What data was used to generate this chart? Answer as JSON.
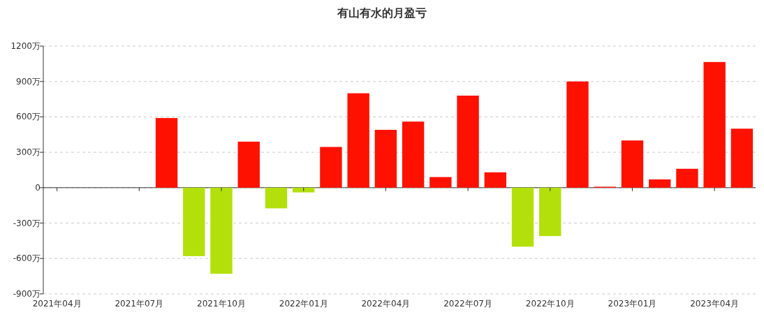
{
  "chart_data": {
    "type": "bar",
    "title": "有山有水的月盈亏",
    "categories": [
      "2021年04月",
      null,
      null,
      "2021年07月",
      null,
      null,
      "2021年10月",
      null,
      null,
      "2022年01月",
      null,
      null,
      "2022年04月",
      null,
      null,
      "2022年07月",
      null,
      null,
      "2022年10月",
      null,
      null,
      "2023年01月",
      null,
      null,
      "2023年04月",
      null
    ],
    "values": [
      null,
      null,
      null,
      null,
      590,
      -580,
      -730,
      390,
      -175,
      -40,
      345,
      800,
      490,
      560,
      90,
      780,
      130,
      -500,
      -410,
      900,
      8,
      400,
      70,
      160,
      1065,
      500
    ],
    "colors": [
      null,
      null,
      null,
      null,
      "#ff1100",
      "#b3e00a",
      "#b3e00a",
      "#ff1100",
      "#b3e00a",
      "#b3e00a",
      "#ff1100",
      "#ff1100",
      "#ff1100",
      "#ff1100",
      "#ff1100",
      "#ff1100",
      "#ff1100",
      "#b3e00a",
      "#b3e00a",
      "#ff1100",
      "#ff1100",
      "#ff1100",
      "#ff1100",
      "#ff1100",
      "#ff1100",
      "#ff1100"
    ],
    "ylim": [
      -900,
      1200
    ],
    "yticks": [
      {
        "value": -900,
        "label": "-900万"
      },
      {
        "value": -600,
        "label": "-600万"
      },
      {
        "value": -300,
        "label": "-300万"
      },
      {
        "value": 0,
        "label": "0"
      },
      {
        "value": 300,
        "label": "300万"
      },
      {
        "value": 600,
        "label": "600万"
      },
      {
        "value": 900,
        "label": "900万"
      },
      {
        "value": 1200,
        "label": "1200万"
      }
    ],
    "grid": "y"
  }
}
